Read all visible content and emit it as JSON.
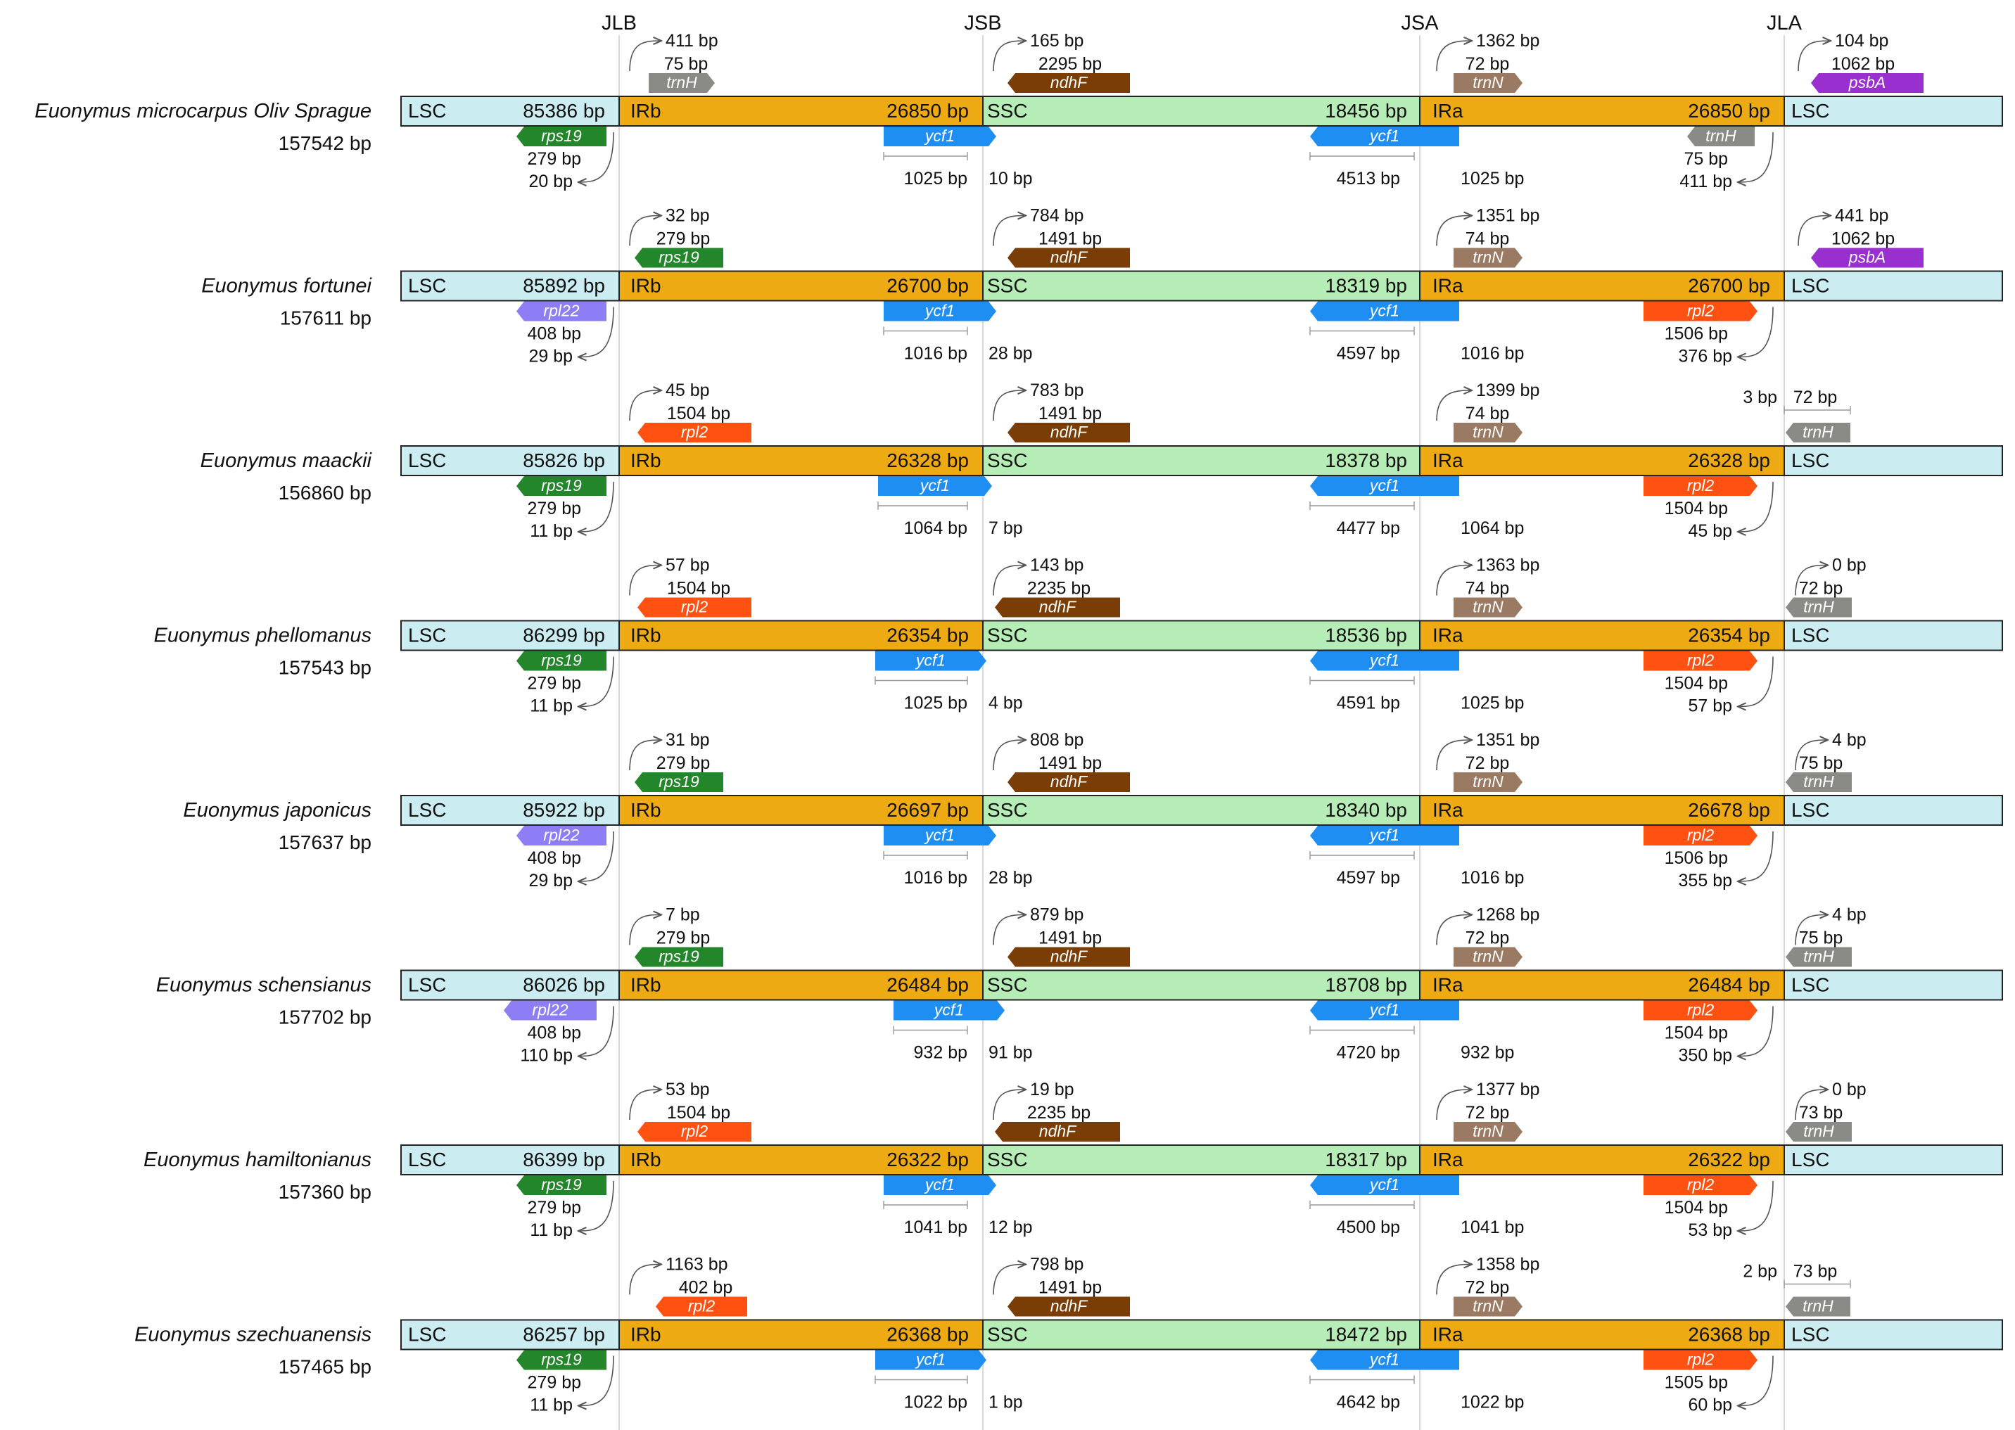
{
  "junction_labels": [
    "JLB",
    "JSB",
    "JSA",
    "JLA"
  ],
  "region_labels": {
    "lsc": "LSC",
    "irb": "IRb",
    "ssc": "SSC",
    "ira": "IRa"
  },
  "colors": {
    "lsc": "#cbecf0",
    "ir": "#eeaa12",
    "ssc": "#b6edb6",
    "trnH": "#8a8a86",
    "ndhF": "#7a3d06",
    "trnN": "#9a7a62",
    "psbA": "#9a2fd0",
    "rps19": "#23862a",
    "ycf1": "#1e8ef2",
    "rpl22": "#8e7ef6",
    "rpl2": "#ff5212"
  },
  "species": [
    {
      "name": "Euonymus microcarpus Oliv Sprague",
      "total": "157542 bp",
      "lsc": "85386 bp",
      "irb": "26850 bp",
      "ssc": "18456 bp",
      "ira": "26850 bp",
      "labels": [
        "411 bp",
        "75 bp",
        "279 bp",
        "20 bp",
        "1025 bp",
        "10 bp",
        "165 bp",
        "2295 bp",
        "4513 bp",
        "1025 bp",
        "1362 bp",
        "72 bp",
        "75 bp",
        "411 bp",
        "104 bp",
        "1062 bp"
      ],
      "genes": {
        "g1": "trnH",
        "g2": "rps19",
        "g3": "ycf1",
        "g4": "ndhF",
        "g5": "ycf1",
        "g6": "trnN",
        "g7": "trnH",
        "g8": "psbA"
      }
    },
    {
      "name": "Euonymus fortunei",
      "total": "157611 bp",
      "lsc": "85892 bp",
      "irb": "26700 bp",
      "ssc": "18319 bp",
      "ira": "26700 bp",
      "labels": [
        "32 bp",
        "279 bp",
        "408 bp",
        "29 bp",
        "1016 bp",
        "28 bp",
        "784 bp",
        "1491 bp",
        "4597 bp",
        "1016 bp",
        "1351 bp",
        "74 bp",
        "1506 bp",
        "376 bp",
        "441 bp",
        "1062 bp"
      ],
      "genes": {
        "g1": "rps19",
        "g2": "rpl22",
        "g3": "ycf1",
        "g4": "ndhF",
        "g5": "ycf1",
        "g6": "trnN",
        "g7": "rpl2",
        "g8": "psbA"
      }
    },
    {
      "name": "Euonymus maackii",
      "total": "156860 bp",
      "lsc": "85826 bp",
      "irb": "26328 bp",
      "ssc": "18378 bp",
      "ira": "26328 bp",
      "labels": [
        "45 bp",
        "1504 bp",
        "279 bp",
        "11 bp",
        "1064 bp",
        "7 bp",
        "783 bp",
        "1491 bp",
        "4477 bp",
        "1064 bp",
        "1399 bp",
        "74 bp",
        "1504 bp",
        "45 bp",
        "3 bp",
        "72 bp"
      ],
      "genes": {
        "g1": "rpl2",
        "g2": "rps19",
        "g3": "ycf1",
        "g4": "ndhF",
        "g5": "ycf1",
        "g6": "trnN",
        "g7": "rpl2",
        "g8": "trnH"
      }
    },
    {
      "name": "Euonymus phellomanus",
      "total": "157543 bp",
      "lsc": "86299 bp",
      "irb": "26354 bp",
      "ssc": "18536 bp",
      "ira": "26354 bp",
      "labels": [
        "57 bp",
        "1504 bp",
        "279 bp",
        "11 bp",
        "1025 bp",
        "4 bp",
        "143 bp",
        "2235 bp",
        "4591 bp",
        "1025 bp",
        "1363 bp",
        "74 bp",
        "1504 bp",
        "57 bp",
        "0 bp",
        "72 bp"
      ],
      "genes": {
        "g1": "rpl2",
        "g2": "rps19",
        "g3": "ycf1",
        "g4": "ndhF",
        "g5": "ycf1",
        "g6": "trnN",
        "g7": "rpl2",
        "g8": "trnH"
      }
    },
    {
      "name": "Euonymus japonicus",
      "total": "157637 bp",
      "lsc": "85922 bp",
      "irb": "26697 bp",
      "ssc": "18340 bp",
      "ira": "26678 bp",
      "labels": [
        "31 bp",
        "279 bp",
        "408 bp",
        "29 bp",
        "1016 bp",
        "28 bp",
        "808 bp",
        "1491 bp",
        "4597 bp",
        "1016 bp",
        "1351 bp",
        "72 bp",
        "1506 bp",
        "355 bp",
        "4 bp",
        "75 bp"
      ],
      "genes": {
        "g1": "rps19",
        "g2": "rpl22",
        "g3": "ycf1",
        "g4": "ndhF",
        "g5": "ycf1",
        "g6": "trnN",
        "g7": "rpl2",
        "g8": "trnH"
      }
    },
    {
      "name": "Euonymus schensianus",
      "total": "157702 bp",
      "lsc": "86026 bp",
      "irb": "26484 bp",
      "ssc": "18708 bp",
      "ira": "26484 bp",
      "labels": [
        "7 bp",
        "279 bp",
        "408 bp",
        "110 bp",
        "932 bp",
        "91 bp",
        "879 bp",
        "1491 bp",
        "4720 bp",
        "932 bp",
        "1268 bp",
        "72 bp",
        "1504 bp",
        "350 bp",
        "4 bp",
        "75 bp"
      ],
      "genes": {
        "g1": "rps19",
        "g2": "rpl22",
        "g3": "ycf1",
        "g4": "ndhF",
        "g5": "ycf1",
        "g6": "trnN",
        "g7": "rpl2",
        "g8": "trnH"
      }
    },
    {
      "name": "Euonymus hamiltonianus",
      "total": "157360 bp",
      "lsc": "86399 bp",
      "irb": "26322 bp",
      "ssc": "18317 bp",
      "ira": "26322 bp",
      "labels": [
        "53 bp",
        "1504 bp",
        "279 bp",
        "11 bp",
        "1041 bp",
        "12 bp",
        "19 bp",
        "2235 bp",
        "4500 bp",
        "1041 bp",
        "1377 bp",
        "72 bp",
        "1504 bp",
        "53 bp",
        "0 bp",
        "73 bp"
      ],
      "genes": {
        "g1": "rpl2",
        "g2": "rps19",
        "g3": "ycf1",
        "g4": "ndhF",
        "g5": "ycf1",
        "g6": "trnN",
        "g7": "rpl2",
        "g8": "trnH"
      }
    },
    {
      "name": "Euonymus szechuanensis",
      "total": "157465 bp",
      "lsc": "86257 bp",
      "irb": "26368 bp",
      "ssc": "18472 bp",
      "ira": "26368 bp",
      "labels": [
        "1163 bp",
        "402 bp",
        "279 bp",
        "11 bp",
        "1022 bp",
        "1 bp",
        "798 bp",
        "1491 bp",
        "4642 bp",
        "1022 bp",
        "1358 bp",
        "72 bp",
        "1505 bp",
        "60 bp",
        "2 bp",
        "73 bp"
      ],
      "genes": {
        "g1": "rpl2",
        "g2": "rps19",
        "g3": "ycf1",
        "g4": "ndhF",
        "g5": "ycf1",
        "g6": "trnN",
        "g7": "rpl2",
        "g8": "trnH"
      }
    }
  ]
}
